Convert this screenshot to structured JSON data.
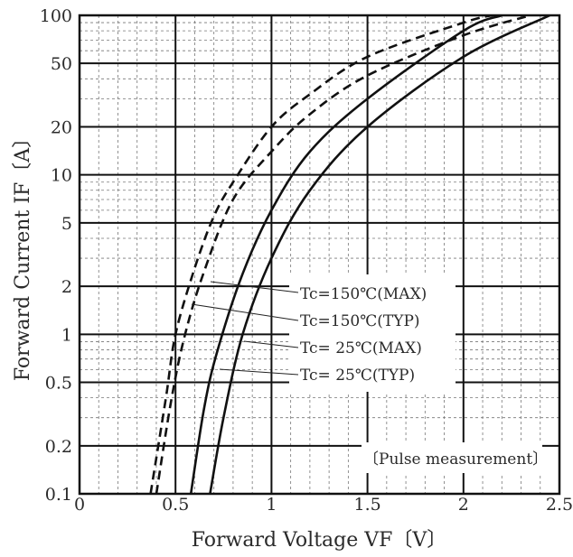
{
  "chart_data": {
    "type": "line",
    "title": "",
    "xlabel": "Forward Voltage  VF〔V〕",
    "ylabel": "Forward Current  IF〔A〕",
    "x_scale": "linear",
    "y_scale": "log",
    "xlim": [
      0,
      2.5
    ],
    "ylim": [
      0.1,
      100
    ],
    "x_ticks": [
      0,
      0.5,
      1,
      1.5,
      2,
      2.5
    ],
    "x_tick_labels": [
      "0",
      "0.5",
      "1",
      "1.5",
      "2",
      "2.5"
    ],
    "y_ticks": [
      0.1,
      0.2,
      0.5,
      1,
      2,
      5,
      10,
      20,
      50,
      100
    ],
    "y_tick_labels": [
      "0.1",
      "0.2",
      "0.5",
      "1",
      "2",
      "5",
      "10",
      "20",
      "50",
      "100"
    ],
    "grid": "on (major solid, minor dashed)",
    "annotation": "〔Pulse measurement〕",
    "series": [
      {
        "name": "Tc=150℃(MAX)",
        "style": "dashed",
        "x": [
          0.37,
          0.45,
          0.5,
          0.6,
          0.7,
          0.8,
          1.0,
          1.2,
          1.5,
          2.0,
          2.15
        ],
        "y": [
          0.1,
          0.4,
          1.0,
          2.6,
          5.5,
          9,
          20,
          32,
          55,
          90,
          100
        ]
      },
      {
        "name": "Tc=150℃(TYP)",
        "style": "dashed",
        "x": [
          0.4,
          0.48,
          0.55,
          0.65,
          0.8,
          1.0,
          1.2,
          1.5,
          2.0,
          2.35
        ],
        "y": [
          0.1,
          0.4,
          1.0,
          2.5,
          7,
          14,
          24,
          42,
          75,
          100
        ]
      },
      {
        "name": "Tc= 25℃(MAX)",
        "style": "solid",
        "x": [
          0.58,
          0.65,
          0.72,
          0.85,
          1.0,
          1.2,
          1.5,
          2.0,
          2.2
        ],
        "y": [
          0.1,
          0.35,
          0.8,
          2.4,
          6,
          14,
          30,
          80,
          100
        ]
      },
      {
        "name": "Tc= 25℃(TYP)",
        "style": "solid",
        "x": [
          0.68,
          0.75,
          0.85,
          1.0,
          1.2,
          1.5,
          2.0,
          2.45
        ],
        "y": [
          0.1,
          0.3,
          1.0,
          3,
          8,
          20,
          55,
          100
        ]
      }
    ]
  }
}
